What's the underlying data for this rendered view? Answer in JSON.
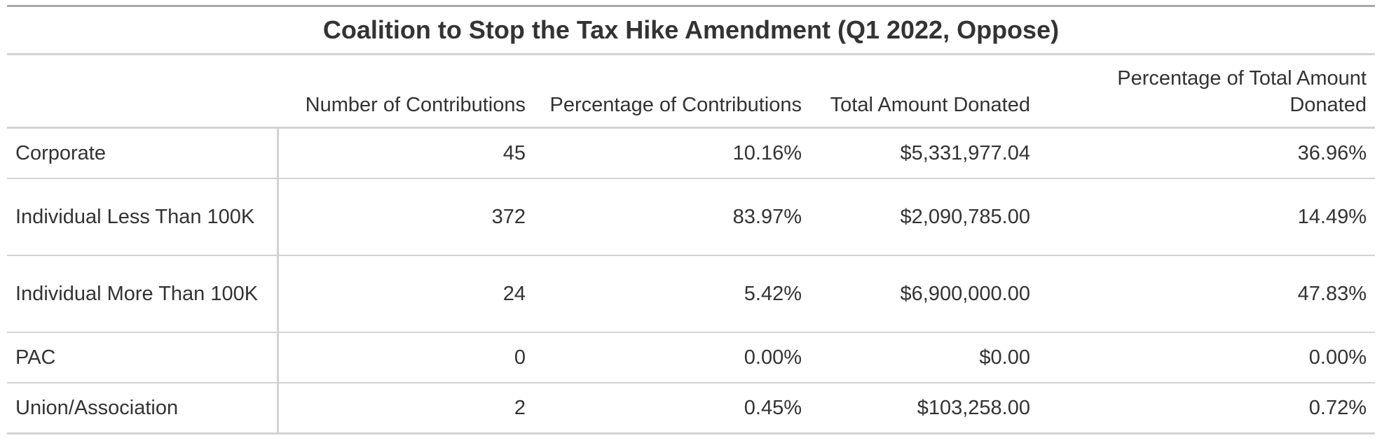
{
  "chart_data": {
    "type": "table",
    "title": "Coalition to Stop the Tax Hike Amendment (Q1 2022, Oppose)",
    "columns": [
      "",
      "Number of Contributions",
      "Percentage of Contributions",
      "Total Amount Donated",
      "Percentage of Total Amount Donated"
    ],
    "rows": [
      {
        "label": "Corporate",
        "count": "45",
        "pct_count": "10.16%",
        "amount": "$5,331,977.04",
        "pct_amount": "36.96%"
      },
      {
        "label": "Individual Less Than 100K",
        "count": "372",
        "pct_count": "83.97%",
        "amount": "$2,090,785.00",
        "pct_amount": "14.49%"
      },
      {
        "label": "Individual More Than 100K",
        "count": "24",
        "pct_count": "5.42%",
        "amount": "$6,900,000.00",
        "pct_amount": "47.83%"
      },
      {
        "label": "PAC",
        "count": "0",
        "pct_count": "0.00%",
        "amount": "$0.00",
        "pct_amount": "0.00%"
      },
      {
        "label": "Union/Association",
        "count": "2",
        "pct_count": "0.45%",
        "amount": "$103,258.00",
        "pct_amount": "0.72%"
      }
    ]
  }
}
